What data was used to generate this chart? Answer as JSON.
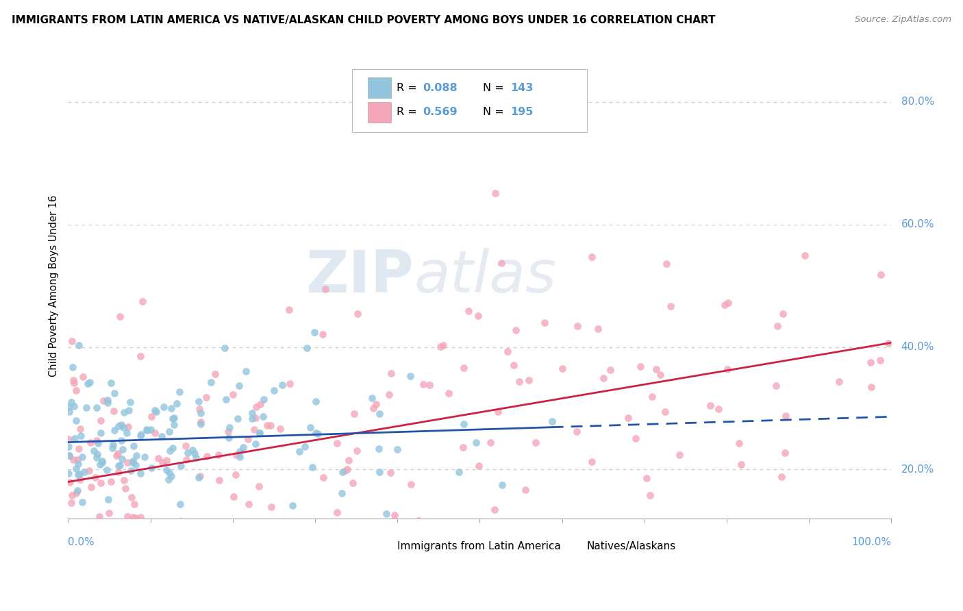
{
  "title": "IMMIGRANTS FROM LATIN AMERICA VS NATIVE/ALASKAN CHILD POVERTY AMONG BOYS UNDER 16 CORRELATION CHART",
  "source": "Source: ZipAtlas.com",
  "ylabel": "Child Poverty Among Boys Under 16",
  "legend_blue_r": "0.088",
  "legend_blue_n": "143",
  "legend_pink_r": "0.569",
  "legend_pink_n": "195",
  "legend_label_blue": "Immigrants from Latin America",
  "legend_label_pink": "Natives/Alaskans",
  "blue_color": "#92C5DE",
  "pink_color": "#F4A6B8",
  "blue_line_color": "#2255AA",
  "pink_line_color": "#CC2244",
  "watermark_zip": "ZIP",
  "watermark_atlas": "atlas",
  "background_color": "#FFFFFF",
  "grid_color": "#CCCCCC",
  "tick_color": "#5B9BD5",
  "ylim_low": 0.12,
  "ylim_high": 0.88
}
